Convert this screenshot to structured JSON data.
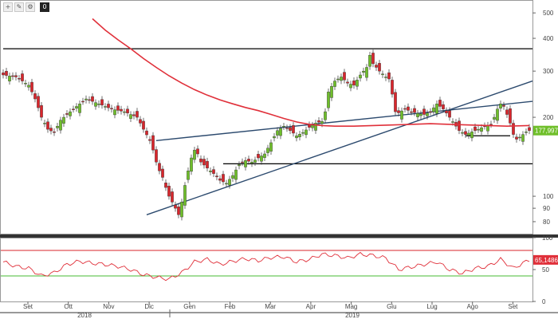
{
  "toolbar": {
    "buttons": [
      {
        "icon": "crosshair-icon",
        "glyph": "+"
      },
      {
        "icon": "pencil-icon",
        "glyph": "✎"
      },
      {
        "icon": "gear-icon",
        "glyph": "⚙"
      },
      {
        "icon": "zero-icon",
        "glyph": "0"
      }
    ]
  },
  "chart_data": [
    {
      "type": "candlestick",
      "y_scale": "log",
      "ylim": [
        72,
        560
      ],
      "y_ticks": [
        80,
        90,
        100,
        200,
        300,
        400,
        500
      ],
      "x_months": [
        "Set",
        "Ott",
        "Nov",
        "Dic",
        "Gen",
        "Feb",
        "Mar",
        "Apr",
        "Mag",
        "Giu",
        "Lug",
        "Ago",
        "Set"
      ],
      "x_years": [
        "2018",
        "2019"
      ],
      "last_price_label": "177,9970",
      "last_price": 177.997,
      "colors": {
        "up": "#6fbf2a",
        "down": "#d9252b",
        "ma": "#e0303a",
        "trendline": "#2c4a6e",
        "level": "#000000"
      },
      "ohlc_close_path": [
        [
          0,
          290
        ],
        [
          4,
          285
        ],
        [
          8,
          265
        ],
        [
          10,
          235
        ],
        [
          12,
          200
        ],
        [
          14,
          180
        ],
        [
          16,
          175
        ],
        [
          18,
          195
        ],
        [
          22,
          215
        ],
        [
          26,
          235
        ],
        [
          30,
          225
        ],
        [
          34,
          215
        ],
        [
          38,
          210
        ],
        [
          40,
          205
        ],
        [
          42,
          200
        ],
        [
          43,
          190
        ],
        [
          44,
          180
        ],
        [
          46,
          163
        ],
        [
          47,
          150
        ],
        [
          48,
          135
        ],
        [
          49,
          125
        ],
        [
          50,
          118
        ],
        [
          51,
          108
        ],
        [
          52,
          100
        ],
        [
          53,
          95
        ],
        [
          54,
          90
        ],
        [
          54.5,
          86
        ],
        [
          55,
          85
        ],
        [
          56,
          95
        ],
        [
          57,
          110
        ],
        [
          58,
          125
        ],
        [
          59,
          140
        ],
        [
          60,
          150
        ],
        [
          61,
          145
        ],
        [
          62,
          135
        ],
        [
          64,
          128
        ],
        [
          66,
          122
        ],
        [
          68,
          115
        ],
        [
          70,
          112
        ],
        [
          72,
          120
        ],
        [
          74,
          132
        ],
        [
          76,
          137
        ],
        [
          78,
          135
        ],
        [
          80,
          140
        ],
        [
          82,
          145
        ],
        [
          84,
          160
        ],
        [
          86,
          178
        ],
        [
          88,
          185
        ],
        [
          90,
          178
        ],
        [
          92,
          170
        ],
        [
          94,
          175
        ],
        [
          96,
          183
        ],
        [
          98,
          190
        ],
        [
          100,
          193
        ],
        [
          101,
          210
        ],
        [
          102,
          250
        ],
        [
          104,
          275
        ],
        [
          106,
          285
        ],
        [
          108,
          270
        ],
        [
          110,
          265
        ],
        [
          112,
          290
        ],
        [
          114,
          310
        ],
        [
          115,
          345
        ],
        [
          116,
          320
        ],
        [
          118,
          300
        ],
        [
          120,
          285
        ],
        [
          121,
          280
        ],
        [
          122,
          245
        ],
        [
          123,
          210
        ],
        [
          124,
          208
        ],
        [
          126,
          215
        ],
        [
          128,
          210
        ],
        [
          130,
          207
        ],
        [
          132,
          205
        ],
        [
          134,
          210
        ],
        [
          136,
          225
        ],
        [
          138,
          215
        ],
        [
          140,
          200
        ],
        [
          142,
          185
        ],
        [
          143,
          178
        ],
        [
          144,
          175
        ],
        [
          145,
          172
        ],
        [
          147,
          176
        ],
        [
          149,
          180
        ],
        [
          151,
          185
        ],
        [
          153,
          188
        ],
        [
          154,
          200
        ],
        [
          155,
          215
        ],
        [
          156,
          225
        ],
        [
          157,
          220
        ],
        [
          158,
          205
        ],
        [
          159,
          190
        ],
        [
          160,
          172
        ],
        [
          161,
          165
        ],
        [
          162,
          168
        ],
        [
          163,
          172
        ],
        [
          164,
          176
        ],
        [
          165,
          178
        ]
      ],
      "ma_path": [
        [
          28,
          475
        ],
        [
          32,
          430
        ],
        [
          36,
          395
        ],
        [
          40,
          365
        ],
        [
          44,
          335
        ],
        [
          48,
          310
        ],
        [
          52,
          288
        ],
        [
          56,
          270
        ],
        [
          60,
          255
        ],
        [
          64,
          243
        ],
        [
          68,
          233
        ],
        [
          72,
          225
        ],
        [
          76,
          218
        ],
        [
          80,
          212
        ],
        [
          84,
          205
        ],
        [
          88,
          198
        ],
        [
          92,
          192
        ],
        [
          96,
          188
        ],
        [
          100,
          186
        ],
        [
          104,
          185
        ],
        [
          110,
          185
        ],
        [
          116,
          186
        ],
        [
          122,
          187
        ],
        [
          128,
          188
        ],
        [
          134,
          189
        ],
        [
          140,
          188
        ],
        [
          146,
          187
        ],
        [
          152,
          186
        ],
        [
          158,
          185
        ],
        [
          165,
          186
        ]
      ],
      "levels": [
        {
          "name": "resistance",
          "value": 365,
          "from": 0,
          "to": 165
        },
        {
          "name": "support",
          "value": 133,
          "from": 69,
          "to": 165
        },
        {
          "name": "short-support",
          "value": 170,
          "from": 145,
          "to": 158
        }
      ],
      "trendlines": [
        {
          "name": "ascending-support",
          "points": [
            [
              45,
              85
            ],
            [
              165,
              275
            ]
          ]
        },
        {
          "name": "channel-top",
          "points": [
            [
              48,
              163
            ],
            [
              165,
              230
            ]
          ]
        }
      ]
    },
    {
      "type": "line",
      "name": "oscillator",
      "ylim": [
        0,
        100
      ],
      "y_ticks": [
        0,
        50,
        100
      ],
      "last_value_label": "65,1486",
      "last_value": 65.1486,
      "upper_band": 80,
      "lower_band": 40,
      "colors": {
        "line": "#e0303a",
        "upper": "#d9252b",
        "lower": "#44bb33"
      },
      "path": [
        [
          0,
          62
        ],
        [
          4,
          55
        ],
        [
          8,
          52
        ],
        [
          12,
          40
        ],
        [
          16,
          45
        ],
        [
          20,
          58
        ],
        [
          24,
          63
        ],
        [
          28,
          60
        ],
        [
          32,
          58
        ],
        [
          36,
          55
        ],
        [
          40,
          50
        ],
        [
          44,
          42
        ],
        [
          48,
          38
        ],
        [
          52,
          35
        ],
        [
          56,
          45
        ],
        [
          60,
          62
        ],
        [
          64,
          66
        ],
        [
          68,
          58
        ],
        [
          72,
          63
        ],
        [
          76,
          67
        ],
        [
          80,
          64
        ],
        [
          84,
          69
        ],
        [
          88,
          70
        ],
        [
          92,
          62
        ],
        [
          96,
          66
        ],
        [
          100,
          74
        ],
        [
          104,
          72
        ],
        [
          108,
          68
        ],
        [
          112,
          74
        ],
        [
          116,
          72
        ],
        [
          120,
          68
        ],
        [
          124,
          50
        ],
        [
          128,
          54
        ],
        [
          132,
          58
        ],
        [
          136,
          62
        ],
        [
          140,
          50
        ],
        [
          144,
          44
        ],
        [
          148,
          52
        ],
        [
          152,
          55
        ],
        [
          156,
          66
        ],
        [
          160,
          52
        ],
        [
          163,
          60
        ],
        [
          165,
          65
        ]
      ]
    }
  ]
}
